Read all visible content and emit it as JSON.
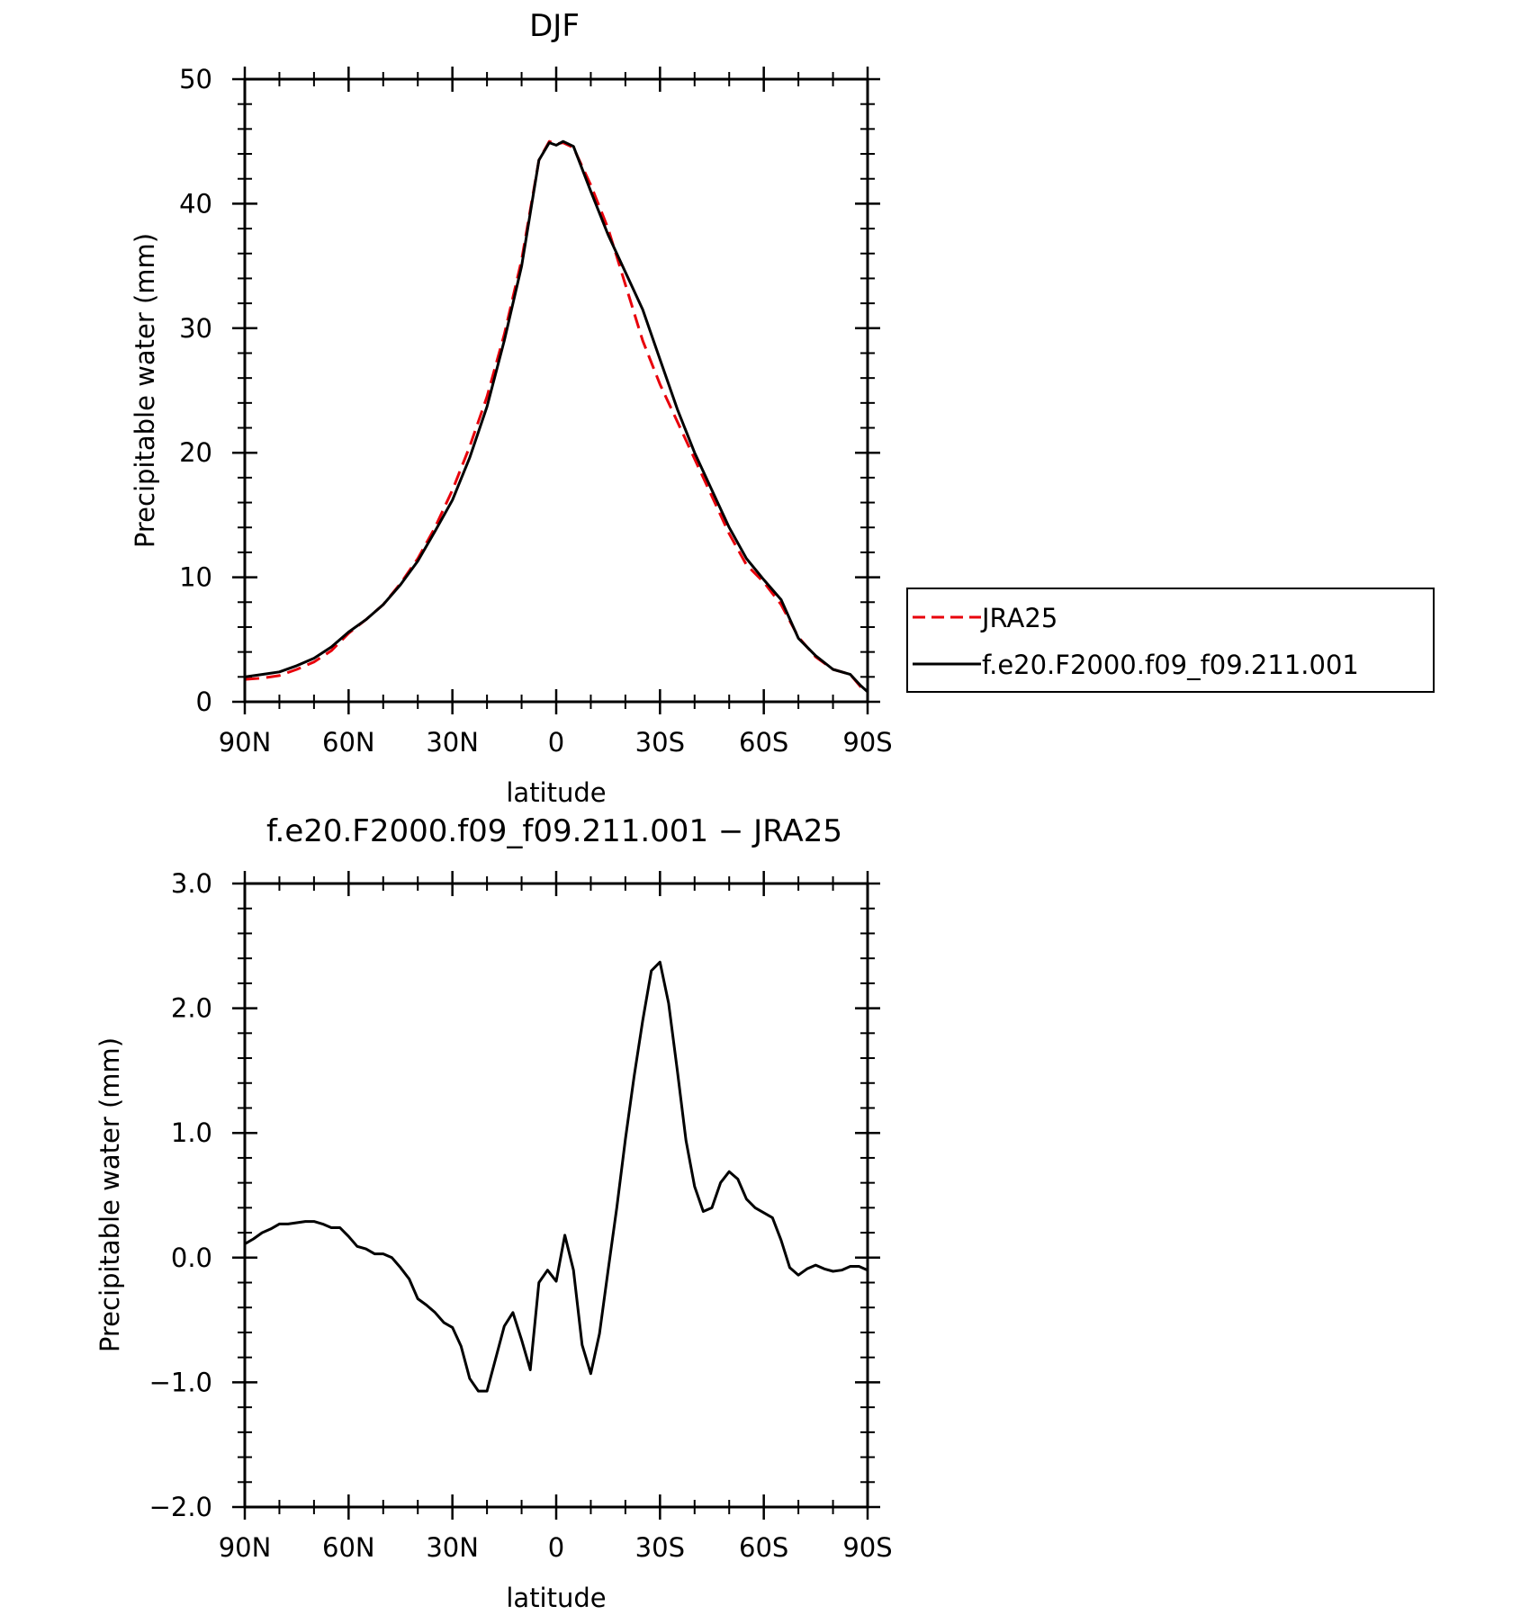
{
  "chart_data": [
    {
      "type": "line",
      "title": "DJF",
      "xlabel": "latitude",
      "ylabel": "Precipitable water (mm)",
      "xlim": [
        90,
        -90
      ],
      "ylim": [
        0,
        50
      ],
      "x_ticks": [
        {
          "value": 90,
          "label": "90N"
        },
        {
          "value": 60,
          "label": "60N"
        },
        {
          "value": 30,
          "label": "30N"
        },
        {
          "value": 0,
          "label": "0"
        },
        {
          "value": -30,
          "label": "30S"
        },
        {
          "value": -60,
          "label": "60S"
        },
        {
          "value": -90,
          "label": "90S"
        }
      ],
      "y_ticks": [
        {
          "value": 0,
          "label": "0"
        },
        {
          "value": 10,
          "label": "10"
        },
        {
          "value": 20,
          "label": "20"
        },
        {
          "value": 30,
          "label": "30"
        },
        {
          "value": 40,
          "label": "40"
        },
        {
          "value": 50,
          "label": "50"
        }
      ],
      "x_minor_step": 10,
      "y_minor_step": 2,
      "grid": false,
      "legend_position": "right",
      "series": [
        {
          "name": "JRA25",
          "color": "#e8000b",
          "dash": "dashed",
          "x": [
            90,
            85,
            80,
            75,
            70,
            65,
            60,
            55,
            50,
            45,
            40,
            35,
            30,
            25,
            20,
            15,
            10,
            5,
            2,
            0,
            -2,
            -5,
            -10,
            -15,
            -20,
            -25,
            -30,
            -35,
            -40,
            -45,
            -50,
            -55,
            -60,
            -65,
            -70,
            -75,
            -80,
            -85,
            -88,
            -90
          ],
          "y": [
            1.8,
            1.9,
            2.1,
            2.6,
            3.2,
            4.1,
            5.5,
            6.6,
            7.8,
            9.5,
            11.5,
            14.0,
            17.0,
            20.5,
            24.5,
            29.5,
            35.5,
            43.5,
            45.0,
            44.8,
            44.9,
            44.5,
            41.5,
            38.0,
            33.5,
            29.0,
            25.5,
            22.5,
            19.5,
            16.5,
            13.5,
            11.0,
            9.6,
            7.8,
            5.2,
            3.6,
            2.6,
            2.2,
            1.2,
            0.8
          ]
        },
        {
          "name": "f.e20.F2000.f09_f09.211.001",
          "color": "#000000",
          "dash": "solid",
          "x": [
            90,
            85,
            80,
            75,
            70,
            65,
            60,
            55,
            50,
            45,
            40,
            35,
            30,
            25,
            20,
            15,
            10,
            5,
            2,
            0,
            -2,
            -5,
            -10,
            -15,
            -20,
            -25,
            -30,
            -35,
            -40,
            -45,
            -50,
            -55,
            -60,
            -65,
            -70,
            -75,
            -80,
            -85,
            -88,
            -90
          ],
          "y": [
            2.0,
            2.2,
            2.4,
            2.9,
            3.5,
            4.4,
            5.6,
            6.6,
            7.8,
            9.4,
            11.3,
            13.7,
            16.2,
            19.6,
            23.7,
            29.0,
            35.0,
            43.5,
            44.9,
            44.7,
            45.0,
            44.6,
            41.0,
            37.5,
            34.5,
            31.5,
            27.5,
            23.5,
            20.0,
            17.0,
            14.0,
            11.5,
            9.8,
            8.2,
            5.1,
            3.7,
            2.6,
            2.2,
            1.3,
            0.8
          ]
        }
      ]
    },
    {
      "type": "line",
      "title": "f.e20.F2000.f09_f09.211.001 − JRA25",
      "xlabel": "latitude",
      "ylabel": "Precipitable water (mm)",
      "xlim": [
        90,
        -90
      ],
      "ylim": [
        -2.0,
        3.0
      ],
      "x_ticks": [
        {
          "value": 90,
          "label": "90N"
        },
        {
          "value": 60,
          "label": "60N"
        },
        {
          "value": 30,
          "label": "30N"
        },
        {
          "value": 0,
          "label": "0"
        },
        {
          "value": -30,
          "label": "30S"
        },
        {
          "value": -60,
          "label": "60S"
        },
        {
          "value": -90,
          "label": "90S"
        }
      ],
      "y_ticks": [
        {
          "value": -2.0,
          "label": "−2.0"
        },
        {
          "value": -1.0,
          "label": "−1.0"
        },
        {
          "value": 0.0,
          "label": "0.0"
        },
        {
          "value": 1.0,
          "label": "1.0"
        },
        {
          "value": 2.0,
          "label": "2.0"
        },
        {
          "value": 3.0,
          "label": "3.0"
        }
      ],
      "x_minor_step": 10,
      "y_minor_step": 0.2,
      "grid": false,
      "series": [
        {
          "color": "#000000",
          "dash": "solid",
          "x": [
            90,
            87.5,
            85,
            82.5,
            80,
            77.5,
            75,
            72.5,
            70,
            67.5,
            65,
            62.5,
            60,
            57.5,
            55,
            52.5,
            50,
            47.5,
            45,
            42.5,
            40,
            37.5,
            35,
            32.5,
            30,
            27.5,
            25,
            22.5,
            20,
            17.5,
            15,
            12.5,
            10,
            7.5,
            5,
            2.5,
            0,
            -2.5,
            -5,
            -7.5,
            -10,
            -12.5,
            -15,
            -17.5,
            -20,
            -22.5,
            -25,
            -27.5,
            -30,
            -32.5,
            -35,
            -37.5,
            -40,
            -42.5,
            -45,
            -47.5,
            -50,
            -52.5,
            -55,
            -57.5,
            -60,
            -62.5,
            -65,
            -67.5,
            -70,
            -72.5,
            -75,
            -77.5,
            -80,
            -82.5,
            -85,
            -87.5,
            -90
          ],
          "y": [
            0.11,
            0.15,
            0.2,
            0.23,
            0.27,
            0.27,
            0.28,
            0.29,
            0.29,
            0.27,
            0.24,
            0.24,
            0.17,
            0.09,
            0.07,
            0.03,
            0.03,
            0.0,
            -0.08,
            -0.17,
            -0.33,
            -0.38,
            -0.44,
            -0.52,
            -0.56,
            -0.71,
            -0.97,
            -1.07,
            -1.07,
            -0.81,
            -0.55,
            -0.44,
            -0.66,
            -0.9,
            -0.2,
            -0.1,
            -0.19,
            0.18,
            -0.1,
            -0.7,
            -0.93,
            -0.61,
            -0.1,
            0.4,
            0.95,
            1.45,
            1.9,
            2.3,
            2.37,
            2.04,
            1.5,
            0.94,
            0.57,
            0.37,
            0.4,
            0.6,
            0.69,
            0.63,
            0.47,
            0.4,
            0.36,
            0.32,
            0.14,
            -0.08,
            -0.14,
            -0.09,
            -0.06,
            -0.09,
            -0.11,
            -0.1,
            -0.07,
            -0.07,
            -0.1
          ]
        }
      ]
    }
  ]
}
